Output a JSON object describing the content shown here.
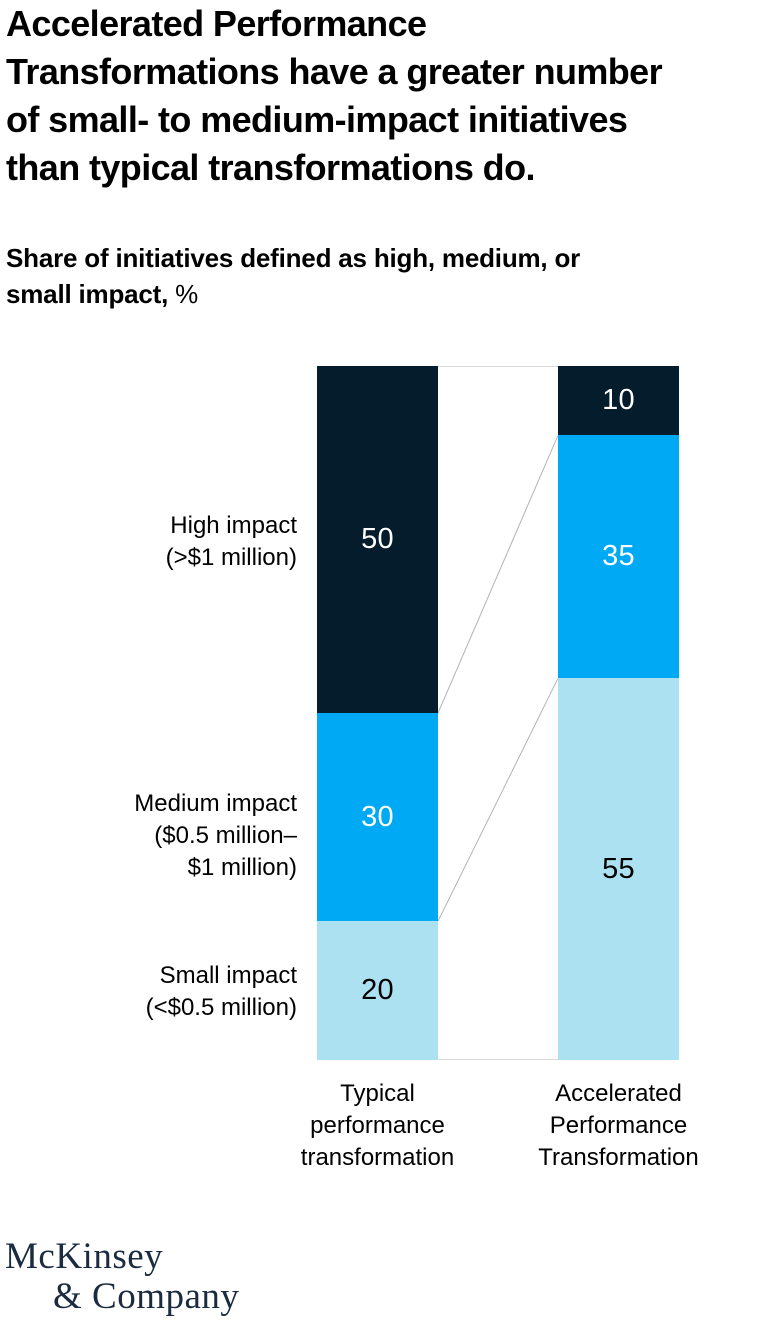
{
  "header": {
    "title_lines": [
      "Accelerated Performance",
      "Transformations have a greater number",
      "of small- to medium-impact initiatives",
      "than typical transformations do."
    ],
    "subtitle_line1": "Share of initiatives defined as high, medium, or",
    "subtitle_line2_bold": "small impact,",
    "subtitle_line2_unit": " %"
  },
  "chart": {
    "row_labels": [
      {
        "name": "high",
        "lines": [
          "High impact",
          "(>$1 million)"
        ]
      },
      {
        "name": "medium",
        "lines": [
          "Medium impact",
          "($0.5 million–",
          "$1 million)"
        ]
      },
      {
        "name": "small",
        "lines": [
          "Small impact",
          "(<$0.5 million)"
        ]
      }
    ],
    "x_labels": [
      {
        "lines": [
          "Typical",
          "performance",
          "transformation"
        ]
      },
      {
        "lines": [
          "Accelerated",
          "Performance",
          "Transformation"
        ]
      }
    ]
  },
  "chart_data": {
    "type": "bar",
    "subtype": "stacked-column",
    "title": "Accelerated Performance Transformations have a greater number of small- to medium-impact initiatives than typical transformations do.",
    "subtitle": "Share of initiatives defined as high, medium, or small impact, %",
    "unit": "%",
    "categories": [
      "Typical performance transformation",
      "Accelerated Performance Transformation"
    ],
    "series": [
      {
        "name": "High impact (>$1 million)",
        "color": "#051c2c",
        "label_color": "#ffffff",
        "values": [
          50,
          10
        ]
      },
      {
        "name": "Medium impact ($0.5 million–$1 million)",
        "color": "#00a9f4",
        "label_color": "#ffffff",
        "values": [
          30,
          35
        ]
      },
      {
        "name": "Small impact (<$0.5 million)",
        "color": "#abe1f0",
        "label_color": "#000000",
        "values": [
          20,
          55
        ]
      }
    ],
    "ylim": [
      0,
      100
    ],
    "grid": false,
    "legend_position": "left-row-labels",
    "connectors": true,
    "stack_order": "top-to-bottom"
  },
  "colors": {
    "dark": "#051c2c",
    "blue": "#00a9f4",
    "light_blue": "#abe1f0",
    "connector": "#b3b3b3",
    "logo": "#1b2b40"
  },
  "footer": {
    "logo_line1": "McKinsey",
    "logo_line2": "& Company"
  }
}
